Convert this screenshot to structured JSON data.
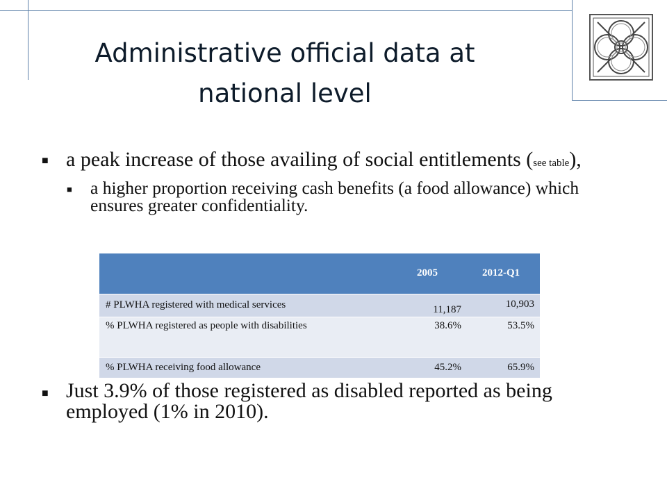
{
  "title": "Administrative official data at national level",
  "bullets": {
    "first": {
      "text_before": "a peak increase of those availing of social entitlements (",
      "small": "see table",
      "text_after": "),"
    },
    "sub": "a higher proportion receiving cash benefits (a food allowance) which ensures greater confidentiality.",
    "last": "Just 3.9% of those registered as disabled reported as being employed (1% in 2010)."
  },
  "table": {
    "headers": [
      "",
      "2005",
      "2012-Q1"
    ],
    "rows": [
      {
        "label": "# PLWHA registered with medical services",
        "v2005": "11,187",
        "v2012": "10,903"
      },
      {
        "label": "% PLWHA registered as people with disabilities",
        "v2005": "38.6%",
        "v2012": "53.5%"
      },
      {
        "label": "% PLWHA receiving food allowance",
        "v2005": "45.2%",
        "v2012": "65.9%"
      }
    ]
  },
  "colors": {
    "accent": "#4f81bd",
    "frame": "#5b7fa8",
    "row_dark": "#d0d8e8",
    "row_light": "#e9edf4"
  },
  "icons": {
    "logo": "celtic-knot-logo",
    "bullet": "square-bullet"
  }
}
